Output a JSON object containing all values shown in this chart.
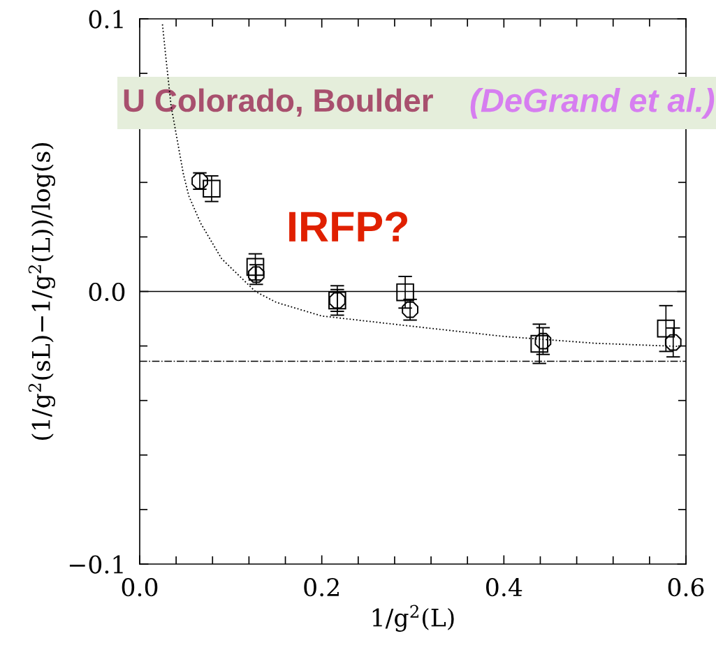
{
  "chart_data": {
    "type": "scatter",
    "xlabel": "1/g$^{2}$(L)",
    "ylabel": "(1/g$^{2}$(sL)−1/g$^{2}$(L))/log(s)",
    "annotations": [
      "U Colorado, Boulder",
      "(DeGrand et al.)",
      "IRFP?"
    ],
    "series": [
      {
        "marker": "circle",
        "color": "#000000",
        "x": [
          0.066,
          0.128,
          0.217,
          0.297,
          0.443,
          0.586
        ],
        "values": [
          0.0405,
          0.0062,
          -0.0033,
          -0.0067,
          -0.0182,
          -0.0187
        ],
        "errors": [
          0.003,
          0.0036,
          0.004,
          0.0038,
          0.0049,
          0.0053
        ]
      },
      {
        "marker": "square",
        "color": "#000000",
        "x": [
          0.079,
          0.127,
          0.217,
          0.2916,
          0.439,
          0.578
        ],
        "values": [
          0.0377,
          0.009,
          -0.0033,
          -0.0003,
          -0.0192,
          -0.0136
        ],
        "errors": [
          0.0047,
          0.0048,
          0.0054,
          0.0058,
          0.0072,
          0.0084
        ]
      },
      {
        "type": "line",
        "marker": "none",
        "line_style": "dotted",
        "color": "#000000",
        "x": [
          0.025,
          0.029,
          0.0345,
          0.048,
          0.054,
          0.067,
          0.09,
          0.127,
          0.15,
          0.2,
          0.3,
          0.4,
          0.5,
          0.595
        ],
        "values": [
          0.098,
          0.085,
          0.068,
          0.043,
          0.035,
          0.025,
          0.012,
          0.0,
          -0.004,
          -0.009,
          -0.0128,
          -0.0165,
          -0.019,
          -0.0202
        ]
      }
    ],
    "ref_lines": [
      {
        "axis": "y",
        "value": 0,
        "line_style": "solid",
        "color": "#000000"
      },
      {
        "axis": "y",
        "value": -0.0256,
        "line_style": "dashdot",
        "color": "#000000"
      }
    ],
    "xlim": [
      0,
      0.6
    ],
    "ylim": [
      -0.1,
      0.1
    ],
    "xticks": [
      {
        "value": 0,
        "label": "0.0"
      },
      {
        "value": 0.04,
        "label": null
      },
      {
        "value": 0.08,
        "label": null
      },
      {
        "value": 0.12,
        "label": null
      },
      {
        "value": 0.16,
        "label": null
      },
      {
        "value": 0.2,
        "label": "0.2"
      },
      {
        "value": 0.24,
        "label": null
      },
      {
        "value": 0.28,
        "label": null
      },
      {
        "value": 0.32,
        "label": null
      },
      {
        "value": 0.36,
        "label": null
      },
      {
        "value": 0.4,
        "label": "0.4"
      },
      {
        "value": 0.44,
        "label": null
      },
      {
        "value": 0.48,
        "label": null
      },
      {
        "value": 0.52,
        "label": null
      },
      {
        "value": 0.56,
        "label": null
      },
      {
        "value": 0.6,
        "label": "0.6"
      }
    ],
    "yticks": [
      {
        "value": -0.1,
        "label": "−0.1"
      },
      {
        "value": -0.08,
        "label": null
      },
      {
        "value": -0.06,
        "label": null
      },
      {
        "value": -0.04,
        "label": null
      },
      {
        "value": -0.02,
        "label": null
      },
      {
        "value": 0,
        "label": "0.0"
      },
      {
        "value": 0.02,
        "label": null
      },
      {
        "value": 0.04,
        "label": null
      },
      {
        "value": 0.06,
        "label": null
      },
      {
        "value": 0.08,
        "label": null
      },
      {
        "value": 0.1,
        "label": "0.1"
      }
    ],
    "grid": false,
    "legend": false
  }
}
